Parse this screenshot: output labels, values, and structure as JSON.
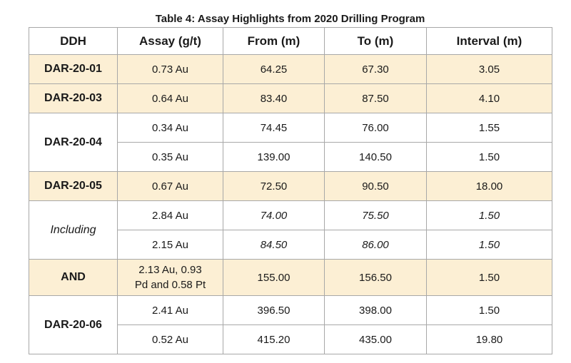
{
  "caption": "Table 4: Assay Highlights from 2020 Drilling Program",
  "headers": [
    "DDH",
    "Assay (g/t)",
    "From (m)",
    "To (m)",
    "Interval (m)"
  ],
  "rows": [
    {
      "ddh": "DAR-20-01",
      "assay": "0.73 Au",
      "from": "64.25",
      "to": "67.30",
      "interval": "3.05",
      "highlight": true
    },
    {
      "ddh": "DAR-20-03",
      "assay": "0.64 Au",
      "from": "83.40",
      "to": "87.50",
      "interval": "4.10",
      "highlight": true
    },
    {
      "ddh": "DAR-20-04",
      "assay": "0.34 Au",
      "from": "74.45",
      "to": "76.00",
      "interval": "1.55",
      "highlight": false
    },
    {
      "ddh": "",
      "assay": "0.35 Au",
      "from": "139.00",
      "to": "140.50",
      "interval": "1.50",
      "highlight": false
    },
    {
      "ddh": "DAR-20-05",
      "assay": "0.67 Au",
      "from": "72.50",
      "to": "90.50",
      "interval": "18.00",
      "highlight": true
    },
    {
      "ddh": "Including",
      "assay": "2.84 Au",
      "from": "74.00",
      "to": "75.50",
      "interval": "1.50",
      "highlight": false
    },
    {
      "ddh": "",
      "assay": "2.15 Au",
      "from": "84.50",
      "to": "86.00",
      "interval": "1.50",
      "highlight": false
    },
    {
      "ddh": "AND",
      "assay_line1": "2.13 Au, 0.93",
      "assay_line2": "Pd and 0.58 Pt",
      "from": "155.00",
      "to": "156.50",
      "interval": "1.50",
      "highlight": true
    },
    {
      "ddh": "DAR-20-06",
      "assay": "2.41 Au",
      "from": "396.50",
      "to": "398.00",
      "interval": "1.50",
      "highlight": false
    },
    {
      "ddh": "",
      "assay": "0.52 Au",
      "from": "415.20",
      "to": "435.00",
      "interval": "19.80",
      "highlight": false
    }
  ]
}
